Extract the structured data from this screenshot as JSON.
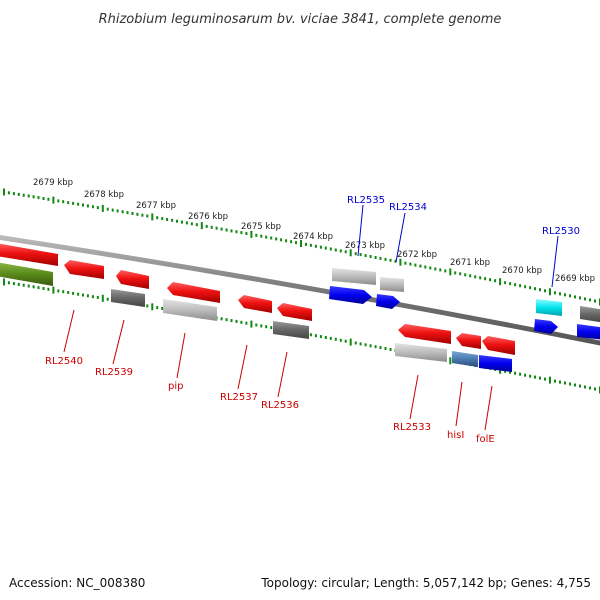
{
  "title": "Rhizobium leguminosarum bv. viciae 3841, complete genome",
  "footer": {
    "accession": "Accession: NC_008380",
    "summary": "Topology: circular; Length: 5,057,142 bp; Genes: 4,755"
  },
  "kbp_labels": [
    "2679 kbp",
    "2678 kbp",
    "2677 kbp",
    "2676 kbp",
    "2675 kbp",
    "2674 kbp",
    "2673 kbp",
    "2672 kbp",
    "2671 kbp",
    "2670 kbp",
    "2669 kbp"
  ],
  "gene_labels_bottom": [
    "RL2540",
    "RL2539",
    "pip",
    "RL2537",
    "RL2536",
    "RL2533",
    "hisI",
    "folE"
  ],
  "gene_labels_top": [
    "RL2535",
    "RL2534",
    "RL2530"
  ],
  "colors": {
    "red": "#ee1111",
    "gray": "#888888",
    "lightgray": "#bbbbbb",
    "blue": "#0000ee",
    "cyan": "#00e5ee",
    "olive": "#5a8a1a",
    "steel": "#4a7ab0",
    "tick": "#118811",
    "backbone": "#808080",
    "label_red": "#cc0000",
    "label_blue": "#0000cc"
  }
}
